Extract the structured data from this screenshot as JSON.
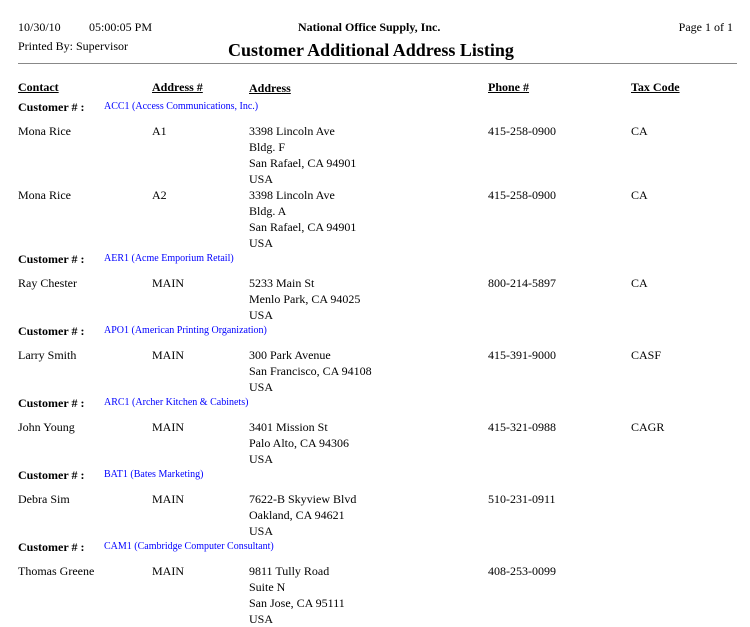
{
  "header": {
    "date": "10/30/10",
    "time": "05:00:05 PM",
    "company": "National Office Supply, Inc.",
    "page": "Page 1 of 1",
    "printed_by": "Printed By: Supervisor",
    "title": "Customer Additional Address Listing"
  },
  "columns": {
    "contact": "Contact",
    "address_no": "Address #",
    "address": "Address",
    "phone": "Phone #",
    "tax_code": "Tax Code"
  },
  "customer_label": "Customer # :",
  "link_color": "#0000ff",
  "customers": [
    {
      "code": "ACC1 (Access Communications, Inc.)",
      "records": [
        {
          "contact": "Mona Rice",
          "address_no": "A1",
          "address": [
            "3398  Lincoln Ave",
            "Bldg. F",
            "San Rafael, CA  94901",
            "USA"
          ],
          "phone": "415-258-0900",
          "tax_code": "CA"
        },
        {
          "contact": "Mona Rice",
          "address_no": "A2",
          "address": [
            "3398  Lincoln Ave",
            "Bldg. A",
            "San Rafael, CA  94901",
            "USA"
          ],
          "phone": "415-258-0900",
          "tax_code": "CA"
        }
      ]
    },
    {
      "code": "AER1 (Acme Emporium Retail)",
      "records": [
        {
          "contact": "Ray Chester",
          "address_no": "MAIN",
          "address": [
            "5233  Main St",
            "Menlo Park, CA  94025",
            "USA"
          ],
          "phone": "800-214-5897",
          "tax_code": "CA"
        }
      ]
    },
    {
      "code": "APO1 (American Printing Organization)",
      "records": [
        {
          "contact": "Larry Smith",
          "address_no": "MAIN",
          "address": [
            "300  Park Avenue",
            "San Francisco, CA  94108",
            "USA"
          ],
          "phone": "415-391-9000",
          "tax_code": "CASF"
        }
      ]
    },
    {
      "code": "ARC1 (Archer Kitchen & Cabinets)",
      "records": [
        {
          "contact": "John Young",
          "address_no": "MAIN",
          "address": [
            "3401  Mission St",
            "Palo Alto, CA  94306",
            "USA"
          ],
          "phone": "415-321-0988",
          "tax_code": "CAGR"
        }
      ]
    },
    {
      "code": "BAT1 (Bates Marketing)",
      "records": [
        {
          "contact": "Debra Sim",
          "address_no": "MAIN",
          "address": [
            "7622-B Skyview Blvd",
            "Oakland, CA  94621",
            "USA"
          ],
          "phone": "510-231-0911",
          "tax_code": ""
        }
      ]
    },
    {
      "code": "CAM1 (Cambridge Computer Consultant)",
      "records": [
        {
          "contact": "Thomas Greene",
          "address_no": "MAIN",
          "address": [
            "9811  Tully Road",
            "Suite N",
            "San Jose, CA  95111",
            "USA"
          ],
          "phone": "408-253-0099",
          "tax_code": ""
        }
      ]
    }
  ]
}
